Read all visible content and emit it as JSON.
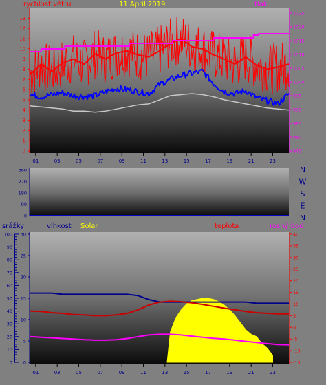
{
  "colors": {
    "frame": "#808080",
    "axis_left": "#ff0000",
    "axis_pressure": "#ff00ff",
    "axis_blue": "#00008b",
    "solar": "#ffff00",
    "wind_gust": "#ff0000",
    "wind_avg": "#0000ff",
    "wind_min": "#c8c8c8",
    "pressure_line": "#ff00ff",
    "humidity_line": "#00008b",
    "temp_line": "#cc0000",
    "dew_line": "#ff00ff"
  },
  "chart_data": [
    {
      "type": "line",
      "title": "11 April 2019",
      "ylabel_left": "rychlost větru",
      "ylabel_right": "tlak",
      "x_ticks": [
        "01",
        "03",
        "05",
        "07",
        "09",
        "11",
        "13",
        "15",
        "17",
        "19",
        "21",
        "23"
      ],
      "x_range_hours": [
        0,
        24
      ],
      "y_left_ticks": [
        "0",
        "1",
        "2",
        "3",
        "4",
        "5",
        "6",
        "7",
        "8",
        "9",
        "10",
        "11",
        "12",
        "13"
      ],
      "y_left_range": [
        0,
        13.5
      ],
      "y_right_ticks": [
        "975",
        "980",
        "985",
        "990",
        "995",
        "1000",
        "1005",
        "1010",
        "1015",
        "1020",
        "1025"
      ],
      "y_right_range": [
        975,
        1025
      ],
      "series": [
        {
          "key": "gust",
          "axis": "left",
          "x": [
            0,
            1,
            2,
            3,
            4,
            5,
            6,
            7,
            8,
            9,
            10,
            11,
            12,
            13,
            14,
            15,
            16,
            17,
            18,
            19,
            20,
            21,
            22,
            23,
            24
          ],
          "values": [
            7.5,
            8.5,
            7.8,
            8.6,
            9.0,
            8.5,
            9.5,
            9.0,
            9.6,
            9.8,
            9.4,
            9.2,
            9.8,
            10.5,
            11.0,
            10.2,
            10.0,
            9.4,
            9.0,
            8.5,
            9.2,
            8.4,
            8.0,
            8.2,
            8.5
          ]
        },
        {
          "key": "avg",
          "axis": "left",
          "x": [
            0,
            1,
            2,
            3,
            4,
            5,
            6,
            7,
            8,
            9,
            10,
            11,
            12,
            13,
            14,
            15,
            16,
            17,
            18,
            19,
            20,
            21,
            22,
            23,
            24
          ],
          "values": [
            5.5,
            5.3,
            5.5,
            5.7,
            5.4,
            5.3,
            5.4,
            5.8,
            6.1,
            6.0,
            5.8,
            5.6,
            6.5,
            7.0,
            7.4,
            7.6,
            7.8,
            6.6,
            5.8,
            5.6,
            5.9,
            5.2,
            4.9,
            4.6,
            5.6
          ]
        },
        {
          "key": "min",
          "axis": "left",
          "x": [
            0,
            1,
            2,
            3,
            4,
            5,
            6,
            7,
            8,
            9,
            10,
            11,
            12,
            13,
            14,
            15,
            16,
            17,
            18,
            19,
            20,
            21,
            22,
            23,
            24
          ],
          "values": [
            4.4,
            4.3,
            4.2,
            4.1,
            3.9,
            3.9,
            3.8,
            3.9,
            4.1,
            4.3,
            4.5,
            4.6,
            5.0,
            5.4,
            5.5,
            5.6,
            5.5,
            5.3,
            5.0,
            4.8,
            4.6,
            4.4,
            4.2,
            4.1,
            4.0
          ]
        },
        {
          "key": "pressure",
          "axis": "right",
          "x": [
            0,
            1,
            1.01,
            3.2,
            3.21,
            9.2,
            9.21,
            13.2,
            13.21,
            17.0,
            17.01,
            20.7,
            20.71,
            21.2,
            21.21,
            24
          ],
          "values": [
            1011,
            1011,
            1012,
            1012,
            1013,
            1013,
            1014,
            1014,
            1015,
            1015,
            1016,
            1016,
            1017,
            1017,
            1017.5,
            1017.5
          ]
        }
      ]
    },
    {
      "type": "line",
      "title": "",
      "y_ticks": [
        "0",
        "90",
        "180",
        "270",
        "360"
      ],
      "y_range": [
        0,
        360
      ],
      "direction_labels": [
        "N",
        "W",
        "S",
        "E",
        "N"
      ],
      "x_ticks": [],
      "series": []
    },
    {
      "type": "line",
      "labels": {
        "rain": "srážky",
        "humidity": "vlhkost",
        "solar": "Solar",
        "temp": "teplota",
        "dew": "rosný bod"
      },
      "x_ticks": [
        "01",
        "03",
        "05",
        "07",
        "09",
        "11",
        "13",
        "15",
        "17",
        "19",
        "21",
        "23"
      ],
      "x_range_hours": [
        0,
        24
      ],
      "rain_ticks": [
        "0",
        "10",
        "20",
        "30",
        "40",
        "50",
        "60",
        "70",
        "80",
        "90",
        "100"
      ],
      "rain_range": [
        0,
        100
      ],
      "mid_ticks": [
        "0",
        "5",
        "10",
        "15",
        "20",
        "25",
        "30"
      ],
      "mid_range": [
        0,
        30
      ],
      "temp_ticks": [
        "-15",
        "-10",
        "-5",
        "0",
        "5",
        "10",
        "15",
        "20",
        "25",
        "30",
        "35",
        "40"
      ],
      "temp_range": [
        -15,
        40
      ],
      "series": [
        {
          "key": "humidity",
          "axis": "rain",
          "x": [
            0,
            1,
            2,
            3,
            4,
            5,
            6,
            7,
            8,
            9,
            10,
            11,
            12,
            13,
            14,
            15,
            16,
            17,
            18,
            19,
            20,
            21,
            22,
            23,
            24
          ],
          "values": [
            54,
            54,
            54,
            53,
            53,
            53,
            53,
            53,
            53,
            53,
            52,
            49,
            47,
            47,
            47,
            47,
            47,
            47,
            47,
            47,
            47,
            46,
            46,
            46,
            46
          ]
        },
        {
          "key": "temp",
          "axis": "temp",
          "x": [
            0,
            1,
            2,
            3,
            4,
            5,
            6,
            7,
            8,
            9,
            10,
            11,
            12,
            13,
            14,
            15,
            16,
            17,
            18,
            19,
            20,
            21,
            22,
            23,
            24
          ],
          "values": [
            7.0,
            6.8,
            6.3,
            6.0,
            5.5,
            5.3,
            5.0,
            5.0,
            5.3,
            6.0,
            7.5,
            9.5,
            10.8,
            11.2,
            11.0,
            10.5,
            9.8,
            9.0,
            8.2,
            7.5,
            6.8,
            6.3,
            6.0,
            5.8,
            5.8
          ]
        },
        {
          "key": "dew",
          "axis": "temp",
          "x": [
            0,
            1,
            2,
            3,
            4,
            5,
            6,
            7,
            8,
            9,
            10,
            11,
            12,
            13,
            14,
            15,
            16,
            17,
            18,
            19,
            20,
            21,
            22,
            23,
            24
          ],
          "values": [
            -4.0,
            -4.3,
            -4.5,
            -4.8,
            -5.0,
            -5.3,
            -5.5,
            -5.5,
            -5.3,
            -4.8,
            -4.0,
            -3.3,
            -3.0,
            -3.0,
            -3.3,
            -3.8,
            -4.3,
            -4.7,
            -5.0,
            -5.5,
            -6.0,
            -6.5,
            -7.0,
            -7.4,
            -7.5
          ]
        },
        {
          "key": "solar",
          "axis": "temp",
          "x": [
            12.7,
            13.0,
            13.5,
            14.0,
            14.5,
            15.0,
            15.5,
            16.0,
            16.5,
            17.0,
            17.5,
            18.0,
            18.5,
            19.0,
            19.5,
            20.0,
            20.5,
            21.0,
            21.5,
            22.0,
            22.5
          ],
          "values": [
            -15,
            -2,
            4,
            7.5,
            10,
            11.5,
            12,
            12.5,
            12.5,
            12,
            11,
            9.5,
            7.5,
            5,
            2,
            -1,
            -3,
            -4,
            -7,
            -9,
            -12
          ]
        }
      ]
    }
  ]
}
